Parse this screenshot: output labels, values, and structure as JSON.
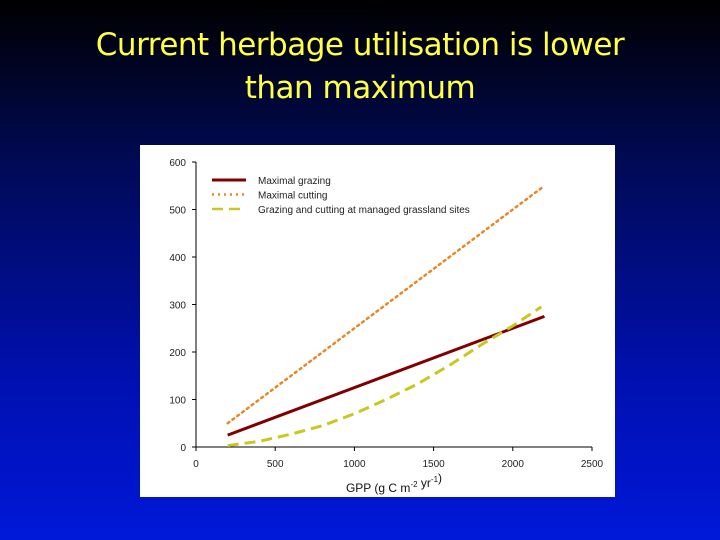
{
  "slide": {
    "title_line1": "Current herbage utilisation is lower",
    "title_line2": "than maximum"
  },
  "chart_data": {
    "type": "line",
    "title": "",
    "xlabel": "GPP (g C m-2 yr-1)",
    "xlabel_parts": {
      "base": "GPP (g C m",
      "sup1": "-2",
      "mid": " yr",
      "sup2": "-1",
      "end": ")"
    },
    "ylabel": "",
    "xlim": [
      0,
      2500
    ],
    "ylim": [
      0,
      600
    ],
    "xticks": [
      0,
      500,
      1000,
      1500,
      2000,
      2500
    ],
    "yticks": [
      0,
      100,
      200,
      300,
      400,
      500,
      600
    ],
    "grid": false,
    "legend_position": "top-left",
    "series": [
      {
        "name": "Maximal grazing",
        "style": "solid",
        "color": "#800000",
        "x": [
          200,
          2200
        ],
        "y": [
          25,
          275
        ]
      },
      {
        "name": "Maximal cutting",
        "style": "dotted",
        "color": "#e8872a",
        "x": [
          200,
          2200
        ],
        "y": [
          50,
          550
        ]
      },
      {
        "name": "Grazing and cutting at managed grassland sites",
        "style": "dashed",
        "color": "#c8c820",
        "x": [
          200,
          400,
          600,
          800,
          1000,
          1200,
          1400,
          1600,
          1800,
          2000,
          2180
        ],
        "y": [
          3,
          12,
          27,
          45,
          70,
          100,
          133,
          172,
          215,
          255,
          295
        ]
      }
    ]
  }
}
